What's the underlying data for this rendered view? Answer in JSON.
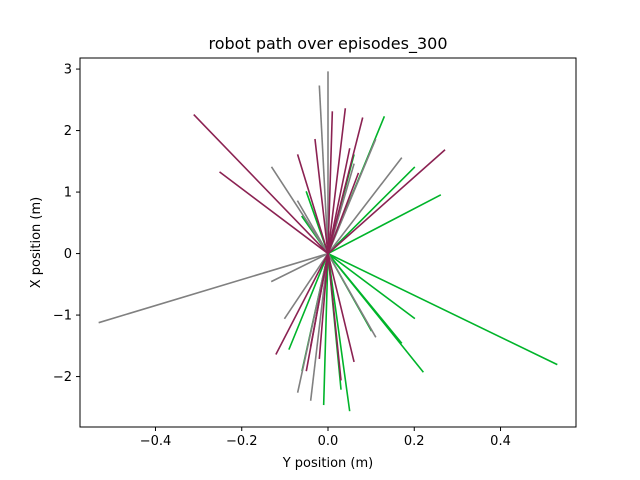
{
  "chart_data": {
    "type": "line",
    "title": "robot path over episodes_300",
    "xlabel": "Y position (m)",
    "ylabel": "X position (m)",
    "xlim": [
      -0.575,
      0.575
    ],
    "ylim": [
      -2.82,
      3.18
    ],
    "xticks": [
      -0.4,
      -0.2,
      0.0,
      0.2,
      0.4
    ],
    "xtick_labels": [
      "−0.4",
      "−0.2",
      "0.0",
      "0.2",
      "0.4"
    ],
    "yticks": [
      -2,
      -1,
      0,
      1,
      2,
      3
    ],
    "ytick_labels": [
      "−2",
      "−1",
      "0",
      "1",
      "2",
      "3"
    ],
    "grid": false,
    "colors": {
      "green": "#00b42a",
      "gray": "#808080",
      "maroon": "#8b2252"
    },
    "series": [
      {
        "color": "gray",
        "x": [
          0.0,
          -0.53
        ],
        "y": [
          0.0,
          -1.12
        ]
      },
      {
        "color": "green",
        "x": [
          0.0,
          0.53
        ],
        "y": [
          0.0,
          -1.8
        ]
      },
      {
        "color": "green",
        "x": [
          0.0,
          0.22
        ],
        "y": [
          0.0,
          -1.92
        ]
      },
      {
        "color": "green",
        "x": [
          0.0,
          0.2
        ],
        "y": [
          0.0,
          -1.05
        ]
      },
      {
        "color": "green",
        "x": [
          0.0,
          0.17
        ],
        "y": [
          0.0,
          -1.45
        ]
      },
      {
        "color": "green",
        "x": [
          0.0,
          0.05
        ],
        "y": [
          0.0,
          -2.55
        ]
      },
      {
        "color": "green",
        "x": [
          0.0,
          -0.01
        ],
        "y": [
          0.0,
          -2.45
        ]
      },
      {
        "color": "green",
        "x": [
          0.0,
          -0.06
        ],
        "y": [
          0.0,
          -1.9
        ]
      },
      {
        "color": "green",
        "x": [
          0.0,
          -0.09
        ],
        "y": [
          0.0,
          -1.55
        ]
      },
      {
        "color": "green",
        "x": [
          0.0,
          0.1
        ],
        "y": [
          0.0,
          -1.25
        ]
      },
      {
        "color": "green",
        "x": [
          0.0,
          0.03
        ],
        "y": [
          0.0,
          -2.2
        ]
      },
      {
        "color": "green",
        "x": [
          0.0,
          0.13
        ],
        "y": [
          0.0,
          2.22
        ]
      },
      {
        "color": "green",
        "x": [
          0.0,
          0.26
        ],
        "y": [
          0.0,
          0.95
        ]
      },
      {
        "color": "green",
        "x": [
          0.0,
          0.2
        ],
        "y": [
          0.0,
          1.4
        ]
      },
      {
        "color": "green",
        "x": [
          0.0,
          -0.05
        ],
        "y": [
          0.0,
          1.0
        ]
      },
      {
        "color": "green",
        "x": [
          0.0,
          -0.06
        ],
        "y": [
          0.0,
          0.6
        ]
      },
      {
        "color": "green",
        "x": [
          0.0,
          0.06
        ],
        "y": [
          0.0,
          1.6
        ]
      },
      {
        "color": "gray",
        "x": [
          0.0,
          -0.13
        ],
        "y": [
          0.0,
          -0.45
        ]
      },
      {
        "color": "gray",
        "x": [
          0.0,
          -0.1
        ],
        "y": [
          0.0,
          -1.05
        ]
      },
      {
        "color": "gray",
        "x": [
          0.0,
          -0.07
        ],
        "y": [
          0.0,
          -2.25
        ]
      },
      {
        "color": "gray",
        "x": [
          0.0,
          0.11
        ],
        "y": [
          0.0,
          -1.35
        ]
      },
      {
        "color": "gray",
        "x": [
          0.0,
          -0.04
        ],
        "y": [
          0.0,
          -2.38
        ]
      },
      {
        "color": "gray",
        "x": [
          0.0,
          0.0
        ],
        "y": [
          0.0,
          2.95
        ]
      },
      {
        "color": "gray",
        "x": [
          0.0,
          -0.02
        ],
        "y": [
          0.0,
          2.72
        ]
      },
      {
        "color": "gray",
        "x": [
          0.0,
          0.11
        ],
        "y": [
          0.0,
          1.85
        ]
      },
      {
        "color": "gray",
        "x": [
          0.0,
          0.17
        ],
        "y": [
          0.0,
          1.55
        ]
      },
      {
        "color": "gray",
        "x": [
          0.0,
          -0.13
        ],
        "y": [
          0.0,
          1.4
        ]
      },
      {
        "color": "gray",
        "x": [
          0.0,
          -0.07
        ],
        "y": [
          0.0,
          0.85
        ]
      },
      {
        "color": "gray",
        "x": [
          0.0,
          0.06
        ],
        "y": [
          0.0,
          1.45
        ]
      },
      {
        "color": "maroon",
        "x": [
          0.0,
          -0.31
        ],
        "y": [
          0.0,
          2.25
        ]
      },
      {
        "color": "maroon",
        "x": [
          0.0,
          -0.25
        ],
        "y": [
          0.0,
          1.32
        ]
      },
      {
        "color": "maroon",
        "x": [
          0.0,
          0.27
        ],
        "y": [
          0.0,
          1.68
        ]
      },
      {
        "color": "maroon",
        "x": [
          0.0,
          -0.12
        ],
        "y": [
          0.0,
          -1.63
        ]
      },
      {
        "color": "maroon",
        "x": [
          0.0,
          0.08
        ],
        "y": [
          0.0,
          2.2
        ]
      },
      {
        "color": "maroon",
        "x": [
          0.0,
          0.04
        ],
        "y": [
          0.0,
          2.35
        ]
      },
      {
        "color": "maroon",
        "x": [
          0.0,
          0.06
        ],
        "y": [
          0.0,
          -1.75
        ]
      },
      {
        "color": "maroon",
        "x": [
          0.0,
          -0.05
        ],
        "y": [
          0.0,
          -1.9
        ]
      },
      {
        "color": "maroon",
        "x": [
          0.0,
          -0.07
        ],
        "y": [
          0.0,
          1.6
        ]
      },
      {
        "color": "maroon",
        "x": [
          0.0,
          0.03
        ],
        "y": [
          0.0,
          -2.05
        ]
      },
      {
        "color": "maroon",
        "x": [
          0.0,
          -0.03
        ],
        "y": [
          0.0,
          1.85
        ]
      },
      {
        "color": "maroon",
        "x": [
          0.0,
          0.07
        ],
        "y": [
          0.0,
          1.3
        ]
      },
      {
        "color": "maroon",
        "x": [
          0.0,
          -0.02
        ],
        "y": [
          0.0,
          -1.7
        ]
      },
      {
        "color": "maroon",
        "x": [
          0.0,
          0.01
        ],
        "y": [
          0.0,
          2.3
        ]
      },
      {
        "color": "maroon",
        "x": [
          0.0,
          0.05
        ],
        "y": [
          0.0,
          1.7
        ]
      },
      {
        "color": "maroon",
        "x": [
          0.0,
          -0.04
        ],
        "y": [
          0.0,
          -1.5
        ]
      }
    ]
  }
}
